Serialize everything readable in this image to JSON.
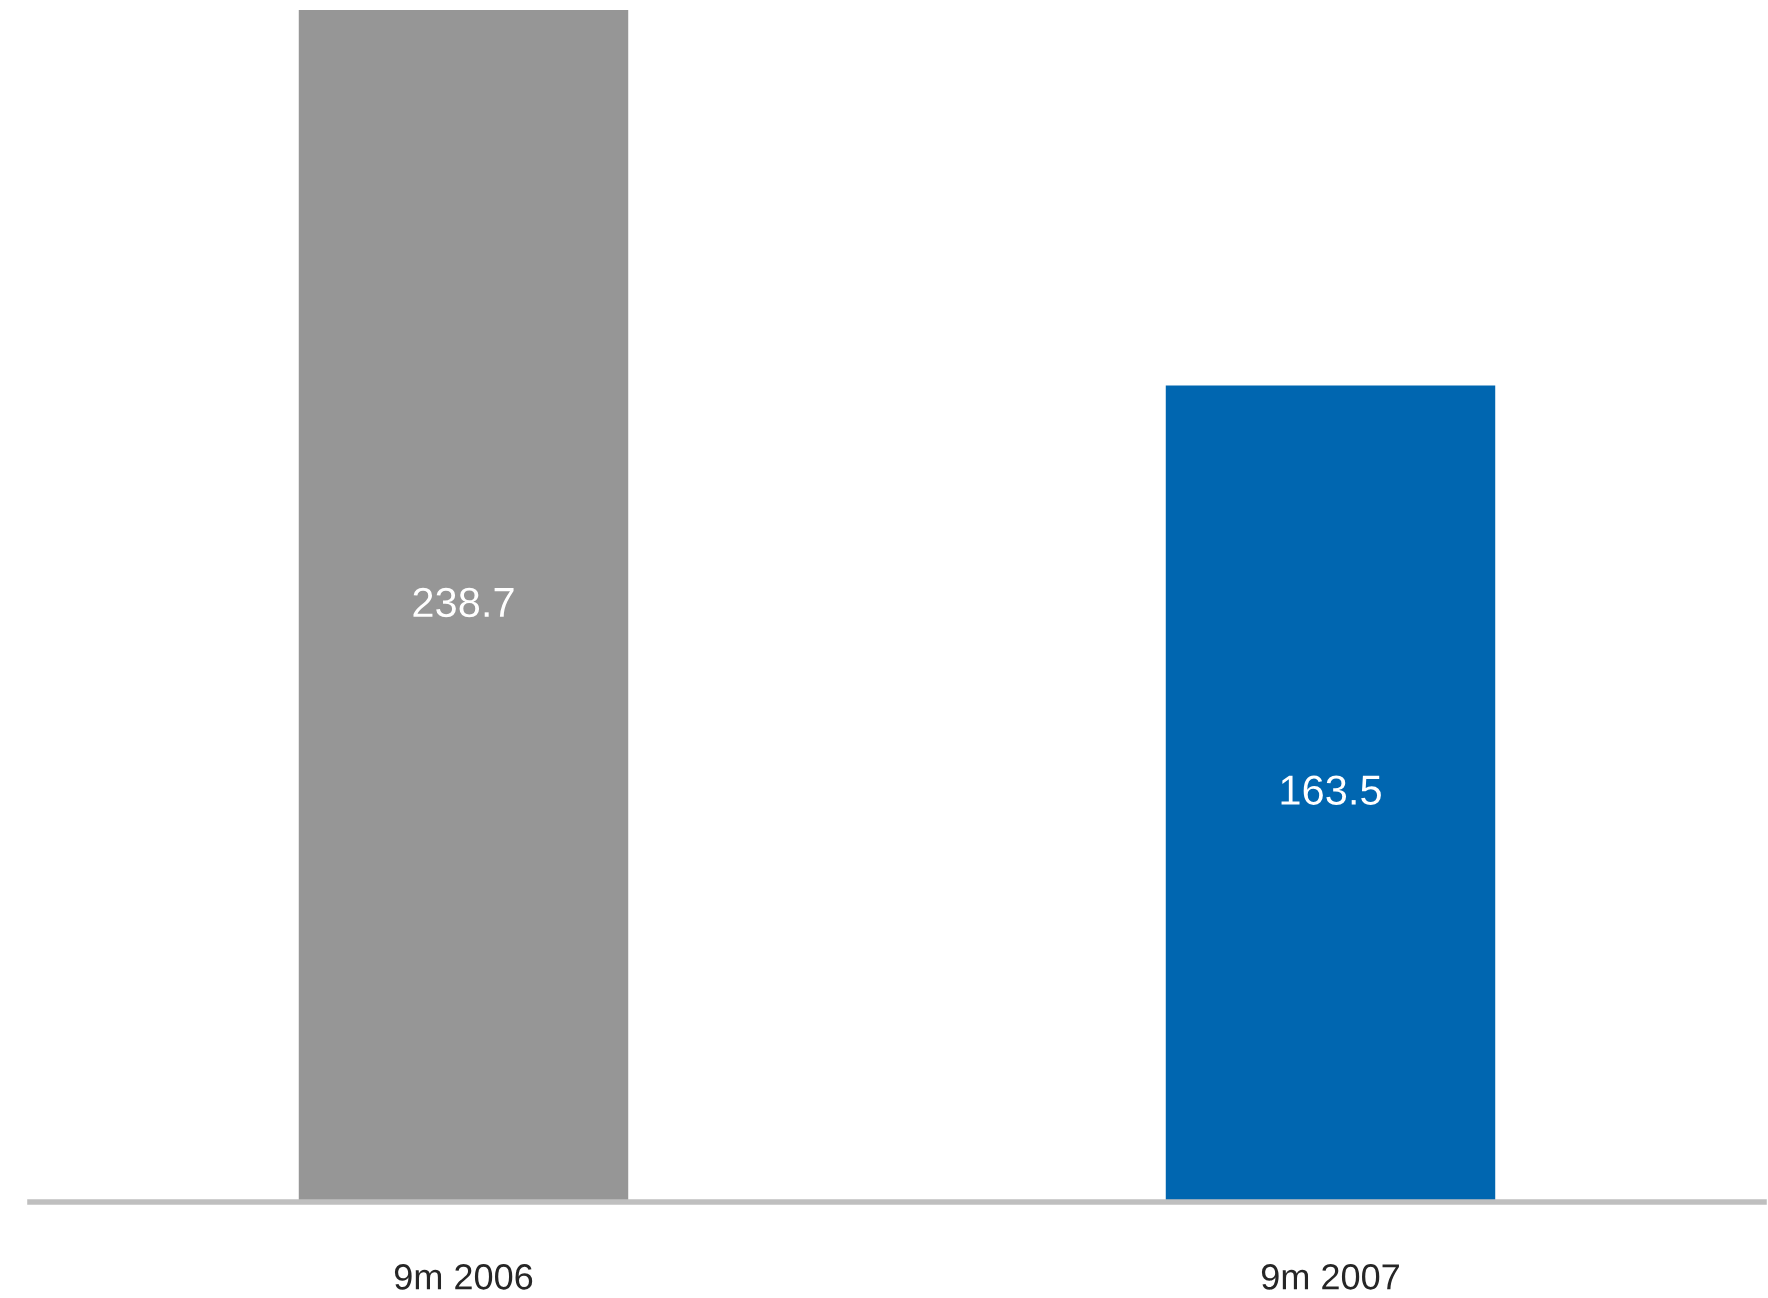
{
  "chart_data": {
    "type": "bar",
    "categories": [
      "9m 2006",
      "9m 2007"
    ],
    "values": [
      238.7,
      163.5
    ],
    "colors": [
      "#969696",
      "#0066b0"
    ],
    "data_labels": true,
    "grid": false,
    "legend": false
  }
}
